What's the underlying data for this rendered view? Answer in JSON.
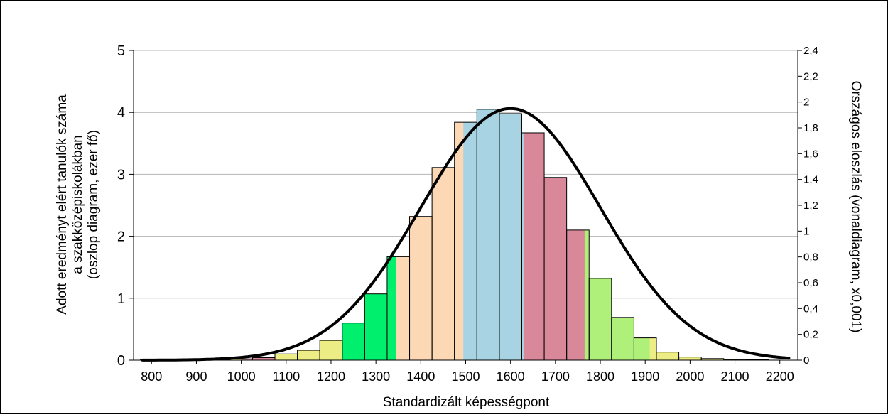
{
  "chart_data": {
    "type": "bar",
    "xlabel": "Standardizált képességpont",
    "ylabel_left": [
      "Adott eredményt elért tanulók száma",
      "a szakközépiskolákban",
      "(oszlop diagram, ezer fő)"
    ],
    "ylabel_right": "Országos eloszlás (vonaldiagram, x0,001)",
    "x_ticks": [
      "800",
      "900",
      "1000",
      "1100",
      "1200",
      "1300",
      "1400",
      "1500",
      "1600",
      "1700",
      "1800",
      "1900",
      "2000",
      "2100",
      "2200"
    ],
    "x_tick_values": [
      800,
      900,
      1000,
      1100,
      1200,
      1300,
      1400,
      1500,
      1600,
      1700,
      1800,
      1900,
      2000,
      2100,
      2200
    ],
    "xlim": [
      760,
      2240
    ],
    "ylim_left": [
      0,
      5
    ],
    "y_ticks_left": [
      "0",
      "1",
      "2",
      "3",
      "4",
      "5"
    ],
    "y_tick_values_left": [
      0,
      1,
      2,
      3,
      4,
      5
    ],
    "ylim_right": [
      0,
      2.4
    ],
    "y_ticks_right": [
      "0",
      "0,2",
      "0,4",
      "0,6",
      "0,8",
      "1",
      "1,2",
      "1,4",
      "1,6",
      "1,8",
      "2",
      "2,2",
      "2,4"
    ],
    "y_tick_values_right": [
      0,
      0.2,
      0.4,
      0.6,
      0.8,
      1.0,
      1.2,
      1.4,
      1.6,
      1.8,
      2.0,
      2.2,
      2.4
    ],
    "grid": true,
    "bin_width": 50,
    "bars": [
      {
        "x": 800,
        "value": 0.005,
        "color": "#EDED85"
      },
      {
        "x": 850,
        "value": 0.005,
        "color": "#EDED85"
      },
      {
        "x": 900,
        "value": 0.008,
        "color": "#EDED85"
      },
      {
        "x": 950,
        "value": 0.01,
        "color": "#EDED85"
      },
      {
        "x": 1000,
        "value": 0.02,
        "color": "#EDED85"
      },
      {
        "x": 1050,
        "value": 0.04,
        "color": "#D9899A"
      },
      {
        "x": 1100,
        "value": 0.1,
        "color": "#EDED85"
      },
      {
        "x": 1150,
        "value": 0.16,
        "color": "#EDED85"
      },
      {
        "x": 1200,
        "value": 0.32,
        "color": "#EDED85"
      },
      {
        "x": 1250,
        "value": 0.6,
        "color": "#00F06E"
      },
      {
        "x": 1300,
        "value": 1.07,
        "color": "#00F06E"
      },
      {
        "x": 1350,
        "value": 1.67,
        "color": "#FDD8B4"
      },
      {
        "x": 1400,
        "value": 2.32,
        "color": "#FDD8B4"
      },
      {
        "x": 1450,
        "value": 3.11,
        "color": "#FDD8B4"
      },
      {
        "x": 1500,
        "value": 3.84,
        "color": "#A8D3E2"
      },
      {
        "x": 1550,
        "value": 4.05,
        "color": "#A8D3E2"
      },
      {
        "x": 1600,
        "value": 3.98,
        "color": "#A8D3E2"
      },
      {
        "x": 1650,
        "value": 3.67,
        "color": "#D9889A"
      },
      {
        "x": 1700,
        "value": 2.95,
        "color": "#D9889A"
      },
      {
        "x": 1750,
        "value": 2.1,
        "color": "#D9889A"
      },
      {
        "x": 1800,
        "value": 1.32,
        "color": "#AFF07A"
      },
      {
        "x": 1850,
        "value": 0.69,
        "color": "#AFF07A"
      },
      {
        "x": 1900,
        "value": 0.36,
        "color": "#EDED85"
      },
      {
        "x": 1950,
        "value": 0.13,
        "color": "#EDED85"
      },
      {
        "x": 2000,
        "value": 0.05,
        "color": "#EDED85"
      },
      {
        "x": 2050,
        "value": 0.025,
        "color": "#EDED85"
      },
      {
        "x": 2100,
        "value": 0.012,
        "color": "#EDED85"
      },
      {
        "x": 2150,
        "value": 0.006,
        "color": "#EDED85"
      }
    ],
    "color_bands": [
      {
        "from": 1000,
        "to": 1050,
        "color": "#D9899A"
      },
      {
        "from": 1225,
        "to": 1345,
        "color": "#00F06E"
      },
      {
        "from": 1345,
        "to": 1495,
        "color": "#FDD8B4"
      },
      {
        "from": 1495,
        "to": 1630,
        "color": "#A8D3E2"
      },
      {
        "from": 1630,
        "to": 1765,
        "color": "#D9889A"
      },
      {
        "from": 1765,
        "to": 1910,
        "color": "#AFF07A"
      }
    ],
    "line": {
      "type": "normal_distribution",
      "mean": 1600,
      "sd": 200,
      "x_range": [
        780,
        2220
      ],
      "peak_value": 1.95,
      "color": "#000000"
    }
  }
}
